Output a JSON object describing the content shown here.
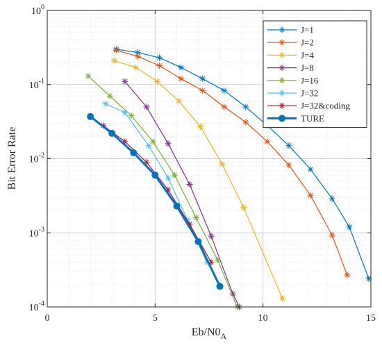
{
  "chart_data": {
    "type": "line",
    "title": "",
    "xlabel": "Eb/N0",
    "xlabel_sub": "A",
    "ylabel": "Bit Error Rate",
    "xlim": [
      0,
      15
    ],
    "ylim": [
      0.0001,
      1
    ],
    "yscale": "log",
    "grid": true,
    "legend_position": "top-right",
    "x_ticks": [
      "0",
      "5",
      "10",
      "15"
    ],
    "y_tick_bases": [
      "10",
      "10",
      "10",
      "10",
      "10"
    ],
    "y_tick_exps": [
      "-4",
      "-3",
      "-2",
      "-1",
      "0"
    ],
    "series": [
      {
        "name": "J=1",
        "color": "#0072BD",
        "marker": "asterisk",
        "x": [
          3.2,
          4.2,
          5.2,
          6.2,
          7.2,
          8.2,
          9.2,
          10.2,
          11.2,
          12.2,
          13.2,
          14.0,
          14.9
        ],
        "y": [
          0.3,
          0.27,
          0.23,
          0.17,
          0.12,
          0.083,
          0.05,
          0.028,
          0.015,
          0.0072,
          0.0029,
          0.0012,
          0.00024
        ]
      },
      {
        "name": "J=2",
        "color": "#D95319",
        "marker": "asterisk",
        "x": [
          3.2,
          4.2,
          5.2,
          6.2,
          7.2,
          8.2,
          9.2,
          10.2,
          11.2,
          12.2,
          13.2,
          13.9
        ],
        "y": [
          0.29,
          0.24,
          0.18,
          0.12,
          0.083,
          0.05,
          0.031,
          0.017,
          0.0082,
          0.0032,
          0.00093,
          0.00027
        ]
      },
      {
        "name": "J=4",
        "color": "#EDB120",
        "marker": "asterisk",
        "x": [
          3.1,
          4.1,
          5.1,
          6.1,
          7.1,
          8.1,
          9.1,
          10.9
        ],
        "y": [
          0.21,
          0.17,
          0.11,
          0.06,
          0.027,
          0.0085,
          0.0022,
          0.00013
        ]
      },
      {
        "name": "J=8",
        "color": "#7E2F8E",
        "marker": "asterisk",
        "x": [
          3.6,
          4.6,
          5.6,
          6.6,
          7.6,
          8.6,
          8.9
        ],
        "y": [
          0.11,
          0.05,
          0.016,
          0.0045,
          0.0009,
          0.00015,
          0.0001
        ]
      },
      {
        "name": "J=16",
        "color": "#77AC30",
        "marker": "asterisk",
        "x": [
          1.9,
          2.9,
          3.9,
          4.9,
          5.9,
          6.9,
          7.9,
          8.8
        ],
        "y": [
          0.13,
          0.07,
          0.038,
          0.017,
          0.006,
          0.0016,
          0.00043,
          0.0001
        ]
      },
      {
        "name": "J=32",
        "color": "#4DBEEE",
        "marker": "asterisk",
        "x": [
          2.7,
          3.6,
          4.7,
          5.6,
          6.5,
          7.4
        ],
        "y": [
          0.055,
          0.042,
          0.015,
          0.0055,
          0.0015,
          0.0004
        ]
      },
      {
        "name": "J=32&coding",
        "color": "#A2142F",
        "marker": "asterisk",
        "x": [
          2.6,
          3.6,
          4.6,
          5.6,
          6.6,
          7.6
        ],
        "y": [
          0.028,
          0.017,
          0.009,
          0.0038,
          0.0013,
          0.0004
        ]
      },
      {
        "name": "TURE",
        "color": "#0072BD",
        "marker": "circle",
        "bold": true,
        "x": [
          2.0,
          3.0,
          4.0,
          5.0,
          6.0,
          7.0,
          8.0
        ],
        "y": [
          0.037,
          0.022,
          0.012,
          0.006,
          0.0023,
          0.00076,
          0.00019
        ]
      }
    ]
  }
}
